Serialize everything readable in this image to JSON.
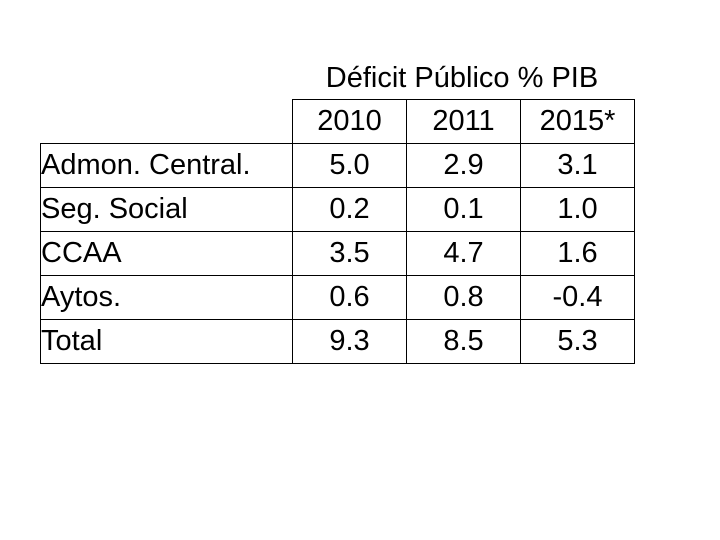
{
  "chart_data": {
    "type": "table",
    "title": "Déficit Público % PIB",
    "columns": [
      "2010",
      "2011",
      "2015*"
    ],
    "rows": [
      {
        "label": "Admon. Central.",
        "values": [
          "5.0",
          "2.9",
          "3.1"
        ]
      },
      {
        "label": "Seg. Social",
        "values": [
          "0.2",
          "0.1",
          "1.0"
        ]
      },
      {
        "label": "CCAA",
        "values": [
          "3.5",
          "4.7",
          "1.6"
        ]
      },
      {
        "label": "Aytos.",
        "values": [
          "0.6",
          "0.8",
          "-0.4"
        ]
      },
      {
        "label": "Total",
        "values": [
          "9.3",
          "8.5",
          "5.3"
        ]
      }
    ]
  }
}
